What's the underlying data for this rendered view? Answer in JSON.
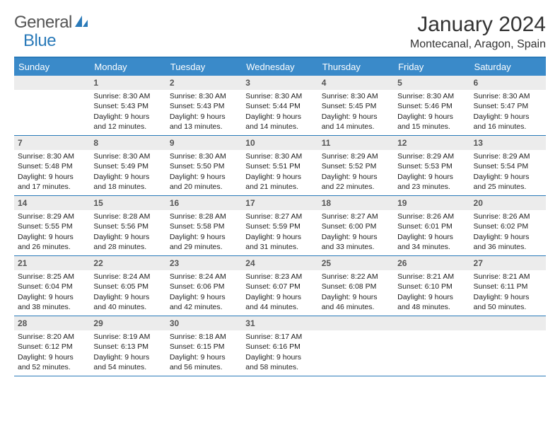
{
  "colors": {
    "brand_blue": "#3a8ac9",
    "border_blue": "#2a7ab9",
    "header_gray": "#ececec",
    "text": "#222222",
    "logo_gray": "#555555"
  },
  "logo": {
    "text1": "General",
    "text2": "Blue"
  },
  "title": "January 2024",
  "location": "Montecanal, Aragon, Spain",
  "day_names": [
    "Sunday",
    "Monday",
    "Tuesday",
    "Wednesday",
    "Thursday",
    "Friday",
    "Saturday"
  ],
  "weeks": [
    [
      {
        "blank": true
      },
      {
        "n": "1",
        "sr": "8:30 AM",
        "ss": "5:43 PM",
        "dl": "9 hours and 12 minutes."
      },
      {
        "n": "2",
        "sr": "8:30 AM",
        "ss": "5:43 PM",
        "dl": "9 hours and 13 minutes."
      },
      {
        "n": "3",
        "sr": "8:30 AM",
        "ss": "5:44 PM",
        "dl": "9 hours and 14 minutes."
      },
      {
        "n": "4",
        "sr": "8:30 AM",
        "ss": "5:45 PM",
        "dl": "9 hours and 14 minutes."
      },
      {
        "n": "5",
        "sr": "8:30 AM",
        "ss": "5:46 PM",
        "dl": "9 hours and 15 minutes."
      },
      {
        "n": "6",
        "sr": "8:30 AM",
        "ss": "5:47 PM",
        "dl": "9 hours and 16 minutes."
      }
    ],
    [
      {
        "n": "7",
        "sr": "8:30 AM",
        "ss": "5:48 PM",
        "dl": "9 hours and 17 minutes."
      },
      {
        "n": "8",
        "sr": "8:30 AM",
        "ss": "5:49 PM",
        "dl": "9 hours and 18 minutes."
      },
      {
        "n": "9",
        "sr": "8:30 AM",
        "ss": "5:50 PM",
        "dl": "9 hours and 20 minutes."
      },
      {
        "n": "10",
        "sr": "8:30 AM",
        "ss": "5:51 PM",
        "dl": "9 hours and 21 minutes."
      },
      {
        "n": "11",
        "sr": "8:29 AM",
        "ss": "5:52 PM",
        "dl": "9 hours and 22 minutes."
      },
      {
        "n": "12",
        "sr": "8:29 AM",
        "ss": "5:53 PM",
        "dl": "9 hours and 23 minutes."
      },
      {
        "n": "13",
        "sr": "8:29 AM",
        "ss": "5:54 PM",
        "dl": "9 hours and 25 minutes."
      }
    ],
    [
      {
        "n": "14",
        "sr": "8:29 AM",
        "ss": "5:55 PM",
        "dl": "9 hours and 26 minutes."
      },
      {
        "n": "15",
        "sr": "8:28 AM",
        "ss": "5:56 PM",
        "dl": "9 hours and 28 minutes."
      },
      {
        "n": "16",
        "sr": "8:28 AM",
        "ss": "5:58 PM",
        "dl": "9 hours and 29 minutes."
      },
      {
        "n": "17",
        "sr": "8:27 AM",
        "ss": "5:59 PM",
        "dl": "9 hours and 31 minutes."
      },
      {
        "n": "18",
        "sr": "8:27 AM",
        "ss": "6:00 PM",
        "dl": "9 hours and 33 minutes."
      },
      {
        "n": "19",
        "sr": "8:26 AM",
        "ss": "6:01 PM",
        "dl": "9 hours and 34 minutes."
      },
      {
        "n": "20",
        "sr": "8:26 AM",
        "ss": "6:02 PM",
        "dl": "9 hours and 36 minutes."
      }
    ],
    [
      {
        "n": "21",
        "sr": "8:25 AM",
        "ss": "6:04 PM",
        "dl": "9 hours and 38 minutes."
      },
      {
        "n": "22",
        "sr": "8:24 AM",
        "ss": "6:05 PM",
        "dl": "9 hours and 40 minutes."
      },
      {
        "n": "23",
        "sr": "8:24 AM",
        "ss": "6:06 PM",
        "dl": "9 hours and 42 minutes."
      },
      {
        "n": "24",
        "sr": "8:23 AM",
        "ss": "6:07 PM",
        "dl": "9 hours and 44 minutes."
      },
      {
        "n": "25",
        "sr": "8:22 AM",
        "ss": "6:08 PM",
        "dl": "9 hours and 46 minutes."
      },
      {
        "n": "26",
        "sr": "8:21 AM",
        "ss": "6:10 PM",
        "dl": "9 hours and 48 minutes."
      },
      {
        "n": "27",
        "sr": "8:21 AM",
        "ss": "6:11 PM",
        "dl": "9 hours and 50 minutes."
      }
    ],
    [
      {
        "n": "28",
        "sr": "8:20 AM",
        "ss": "6:12 PM",
        "dl": "9 hours and 52 minutes."
      },
      {
        "n": "29",
        "sr": "8:19 AM",
        "ss": "6:13 PM",
        "dl": "9 hours and 54 minutes."
      },
      {
        "n": "30",
        "sr": "8:18 AM",
        "ss": "6:15 PM",
        "dl": "9 hours and 56 minutes."
      },
      {
        "n": "31",
        "sr": "8:17 AM",
        "ss": "6:16 PM",
        "dl": "9 hours and 58 minutes."
      },
      {
        "blank": true
      },
      {
        "blank": true
      },
      {
        "blank": true
      }
    ]
  ],
  "labels": {
    "sunrise": "Sunrise:",
    "sunset": "Sunset:",
    "daylight": "Daylight:"
  }
}
